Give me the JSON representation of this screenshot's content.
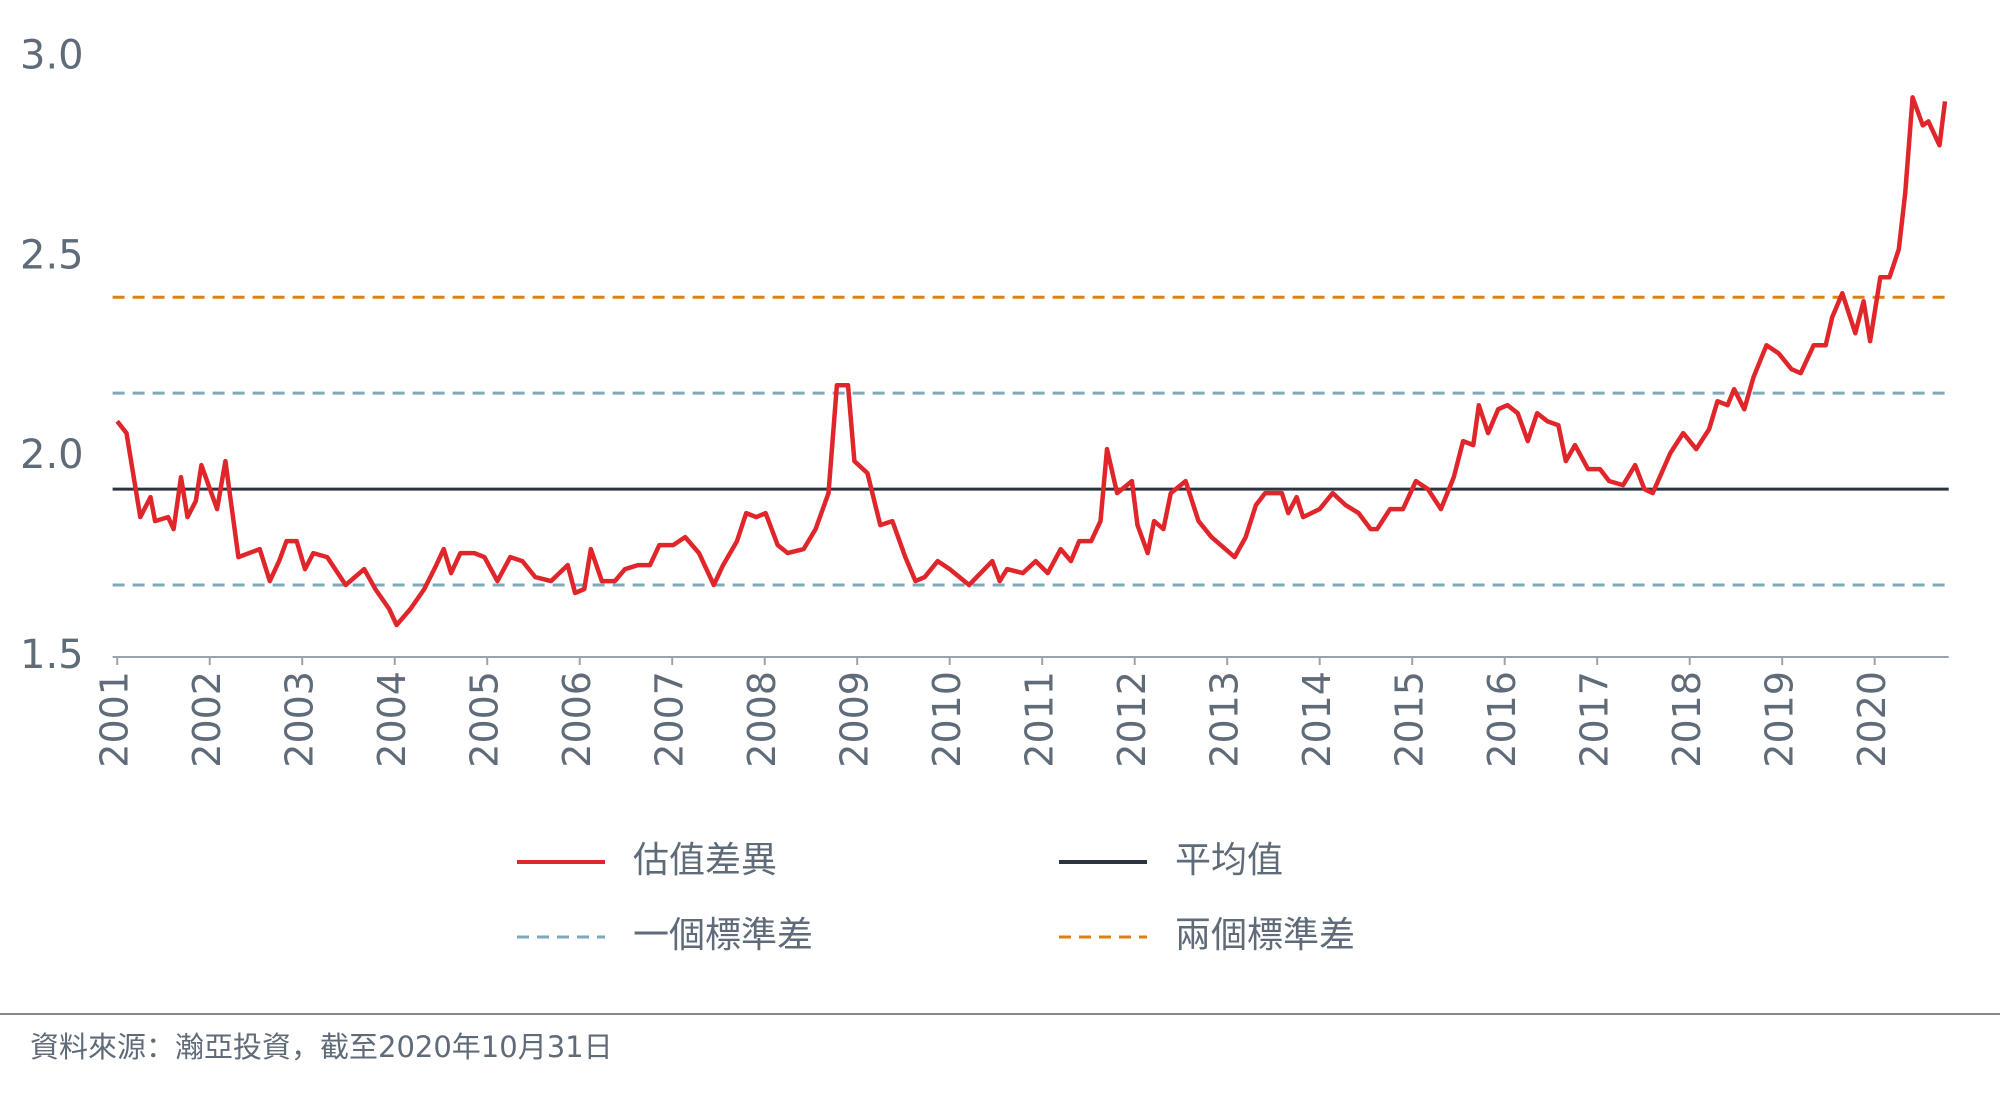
{
  "chart_data": {
    "type": "line",
    "source": "資料來源：瀚亞投資，截至2020年10月31日",
    "x": [
      2001.0,
      2001.1,
      2001.25,
      2001.36,
      2001.41,
      2001.55,
      2001.61,
      2001.69,
      2001.76,
      2001.85,
      2001.91,
      2002.08,
      2002.17,
      2002.31,
      2002.54,
      2002.65,
      2002.75,
      2002.83,
      2002.94,
      2003.03,
      2003.12,
      2003.27,
      2003.47,
      2003.67,
      2003.79,
      2003.94,
      2004.02,
      2004.17,
      2004.32,
      2004.45,
      2004.53,
      2004.61,
      2004.71,
      2004.86,
      2004.97,
      2005.11,
      2005.25,
      2005.38,
      2005.52,
      2005.69,
      2005.87,
      2005.95,
      2006.05,
      2006.12,
      2006.24,
      2006.38,
      2006.49,
      2006.63,
      2006.76,
      2006.86,
      2007.01,
      2007.14,
      2007.29,
      2007.45,
      2007.55,
      2007.7,
      2007.8,
      2007.91,
      2008.01,
      2008.14,
      2008.25,
      2008.42,
      2008.55,
      2008.69,
      2008.78,
      2008.9,
      2008.97,
      2009.11,
      2009.25,
      2009.38,
      2009.52,
      2009.63,
      2009.73,
      2009.87,
      2010.0,
      2010.21,
      2010.46,
      2010.54,
      2010.62,
      2010.79,
      2010.93,
      2011.06,
      2011.2,
      2011.31,
      2011.4,
      2011.53,
      2011.63,
      2011.7,
      2011.81,
      2011.97,
      2012.03,
      2012.14,
      2012.21,
      2012.31,
      2012.39,
      2012.55,
      2012.69,
      2012.83,
      2013.08,
      2013.2,
      2013.31,
      2013.41,
      2013.59,
      2013.66,
      2013.75,
      2013.82,
      2014.0,
      2014.14,
      2014.28,
      2014.42,
      2014.55,
      2014.62,
      2014.76,
      2014.9,
      2015.04,
      2015.17,
      2015.31,
      2015.45,
      2015.55,
      2015.66,
      2015.72,
      2015.82,
      2015.93,
      2016.03,
      2016.14,
      2016.25,
      2016.35,
      2016.46,
      2016.58,
      2016.66,
      2016.76,
      2016.9,
      2017.03,
      2017.13,
      2017.28,
      2017.41,
      2017.51,
      2017.6,
      2017.79,
      2017.93,
      2018.07,
      2018.21,
      2018.3,
      2018.41,
      2018.48,
      2018.59,
      2018.69,
      2018.83,
      2018.96,
      2019.1,
      2019.2,
      2019.34,
      2019.47,
      2019.54,
      2019.65,
      2019.79,
      2019.88,
      2019.95,
      2020.06,
      2020.16,
      2020.26,
      2020.33,
      2020.41,
      2020.52,
      2020.58,
      2020.7,
      2020.76
    ],
    "series": [
      {
        "name": "估值差異",
        "color": "#e0262a",
        "values": [
          2.09,
          2.06,
          1.85,
          1.9,
          1.84,
          1.85,
          1.82,
          1.95,
          1.85,
          1.89,
          1.98,
          1.87,
          1.99,
          1.75,
          1.77,
          1.69,
          1.74,
          1.79,
          1.79,
          1.72,
          1.76,
          1.75,
          1.68,
          1.72,
          1.67,
          1.62,
          1.58,
          1.62,
          1.67,
          1.73,
          1.77,
          1.71,
          1.76,
          1.76,
          1.75,
          1.69,
          1.75,
          1.74,
          1.7,
          1.69,
          1.73,
          1.66,
          1.67,
          1.77,
          1.69,
          1.69,
          1.72,
          1.73,
          1.73,
          1.78,
          1.78,
          1.8,
          1.76,
          1.68,
          1.73,
          1.79,
          1.86,
          1.85,
          1.86,
          1.78,
          1.76,
          1.77,
          1.82,
          1.91,
          2.18,
          2.18,
          1.99,
          1.96,
          1.83,
          1.84,
          1.75,
          1.69,
          1.7,
          1.74,
          1.72,
          1.68,
          1.74,
          1.69,
          1.72,
          1.71,
          1.74,
          1.71,
          1.77,
          1.74,
          1.79,
          1.79,
          1.84,
          2.02,
          1.91,
          1.94,
          1.83,
          1.76,
          1.84,
          1.82,
          1.91,
          1.94,
          1.84,
          1.8,
          1.75,
          1.8,
          1.88,
          1.91,
          1.91,
          1.86,
          1.9,
          1.85,
          1.87,
          1.91,
          1.88,
          1.86,
          1.82,
          1.82,
          1.87,
          1.87,
          1.94,
          1.92,
          1.87,
          1.95,
          2.04,
          2.03,
          2.13,
          2.06,
          2.12,
          2.13,
          2.11,
          2.04,
          2.11,
          2.09,
          2.08,
          1.99,
          2.03,
          1.97,
          1.97,
          1.94,
          1.93,
          1.98,
          1.92,
          1.91,
          2.01,
          2.06,
          2.02,
          2.07,
          2.14,
          2.13,
          2.17,
          2.12,
          2.2,
          2.28,
          2.26,
          2.22,
          2.21,
          2.28,
          2.28,
          2.35,
          2.41,
          2.31,
          2.39,
          2.29,
          2.45,
          2.45,
          2.52,
          2.66,
          2.9,
          2.83,
          2.84,
          2.78,
          2.89
        ]
      }
    ],
    "hlines": [
      {
        "name": "平均值",
        "color": "#2b3440",
        "dashed": false,
        "values": [
          1.92
        ]
      },
      {
        "name": "一個標準差",
        "color": "#7fa8b8",
        "dashed": true,
        "values": [
          1.68,
          2.16
        ]
      },
      {
        "name": "兩個標準差",
        "color": "#d9820f",
        "dashed": true,
        "values": [
          2.4
        ]
      }
    ],
    "xlim": [
      2000.95,
      2020.8
    ],
    "xticks": [
      2001,
      2002,
      2003,
      2004,
      2005,
      2006,
      2007,
      2008,
      2009,
      2010,
      2011,
      2012,
      2013,
      2014,
      2015,
      2016,
      2017,
      2018,
      2019,
      2020
    ],
    "ylim": [
      1.5,
      3.0
    ],
    "yticks": [
      {
        "value": 1.5,
        "label": "1.5"
      },
      {
        "value": 2.0,
        "label": "2.0"
      },
      {
        "value": 2.5,
        "label": "2.5"
      },
      {
        "value": 3.0,
        "label": "3.0"
      }
    ]
  }
}
